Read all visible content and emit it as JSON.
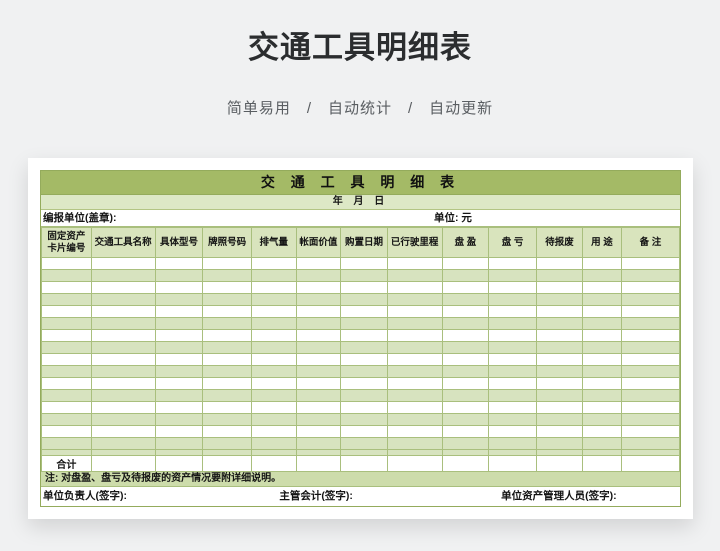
{
  "page": {
    "title": "交通工具明细表",
    "subtitle": "简单易用　/　自动统计　/　自动更新"
  },
  "sheet": {
    "title": "交 通 工 具 明 细 表",
    "date_line": "年 月 日",
    "reporting_unit_label": "编报单位(盖章):",
    "unit_label": "单位: 元",
    "columns": [
      "固定资产卡片编号",
      "交通工具名称",
      "具体型号",
      "牌照号码",
      "排气量",
      "帐面价值",
      "购置日期",
      "已行驶里程",
      "盘 盈",
      "盘 亏",
      "待报废",
      "用 途",
      "备 注"
    ],
    "empty_row_count": 16,
    "extra_short_row": 1,
    "total_label": "合计",
    "note": "注: 对盘盈、盘亏及待报废的资产情况要附详细说明。",
    "signatures": [
      "单位负责人(签字):",
      "主管会计(签字):",
      "单位资产管理人员(签字):"
    ],
    "colors": {
      "band_green": "#a4ba66",
      "light_band_green": "#dde8c6",
      "row_green": "#d7e3bf",
      "note_green": "#cddcab",
      "grid_border": "#a9bf7d"
    }
  }
}
